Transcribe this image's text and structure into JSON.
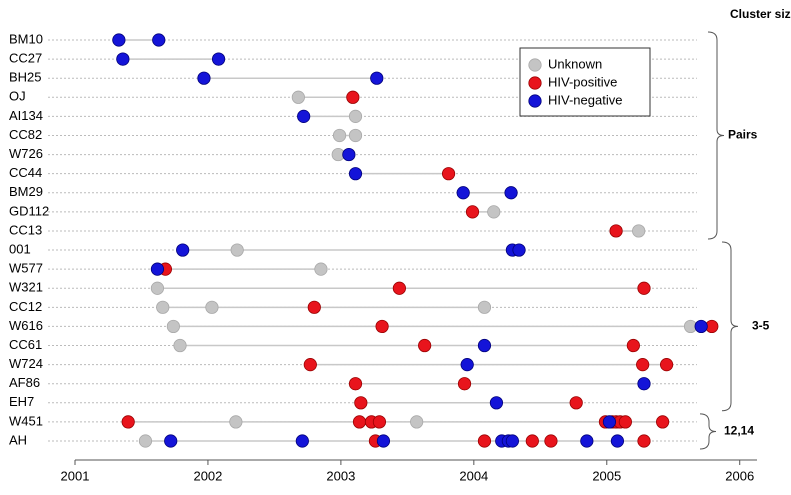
{
  "chart_data": {
    "type": "timeline-dots",
    "title": "Cluster sizes",
    "rows": [
      "BM10",
      "CC27",
      "BH25",
      "OJ",
      "AI134",
      "CC82",
      "W726",
      "CC44",
      "BM29",
      "GD112",
      "CC13",
      "001",
      "W577",
      "W321",
      "CC12",
      "W616",
      "CC61",
      "W724",
      "AF86",
      "EH7",
      "W451",
      "AH"
    ],
    "xlim": [
      2001,
      2006.13
    ],
    "xticks": [
      2001,
      2002,
      2003,
      2004,
      2005,
      2006
    ],
    "grid": true,
    "legend": "top-right",
    "groups": [
      {
        "label": "Pairs",
        "from": "BM10",
        "to": "CC13"
      },
      {
        "label": "3-5",
        "from": "001",
        "to": "EH7"
      },
      {
        "label": "12,14",
        "from": "W451",
        "to": "AH"
      }
    ],
    "series": [
      {
        "name": "Unknown",
        "color": "#c4c4c4",
        "rows": [
          "OJ",
          "AI134",
          "CC82",
          "CC82",
          "W726",
          "GD112",
          "CC13",
          "001",
          "W577",
          "W321",
          "CC12",
          "CC12",
          "CC12",
          "W616",
          "W616",
          "CC61",
          "W451",
          "W451",
          "AH"
        ],
        "values": [
          2002.68,
          2003.11,
          2002.99,
          2003.11,
          2002.98,
          2004.15,
          2005.24,
          2002.22,
          2002.85,
          2001.62,
          2001.66,
          2002.03,
          2004.08,
          2001.74,
          2005.63,
          2001.79,
          2002.21,
          2003.57,
          2001.53
        ]
      },
      {
        "name": "HIV-positive",
        "color": "#e8141c",
        "rows": [
          "OJ",
          "CC44",
          "GD112",
          "CC13",
          "W577",
          "W321",
          "W321",
          "CC12",
          "W616",
          "W616",
          "CC61",
          "CC61",
          "W724",
          "W724",
          "W724",
          "AF86",
          "AF86",
          "EH7",
          "EH7",
          "W451",
          "W451",
          "W451",
          "W451",
          "W451",
          "W451",
          "W451",
          "W451",
          "W451",
          "W451",
          "AH",
          "AH",
          "AH",
          "AH",
          "AH"
        ],
        "values": [
          2003.09,
          2003.81,
          2003.99,
          2005.07,
          2001.68,
          2003.44,
          2005.28,
          2002.8,
          2003.31,
          2005.79,
          2003.63,
          2005.2,
          2002.77,
          2005.27,
          2005.45,
          2003.11,
          2003.93,
          2003.15,
          2004.77,
          2001.4,
          2003.14,
          2003.23,
          2003.29,
          2004.99,
          2005.04,
          2005.07,
          2005.1,
          2005.14,
          2005.42,
          2003.26,
          2004.08,
          2004.44,
          2004.58,
          2005.28
        ]
      },
      {
        "name": "HIV-negative",
        "color": "#1414d8",
        "rows": [
          "BM10",
          "BM10",
          "CC27",
          "CC27",
          "BH25",
          "BH25",
          "AI134",
          "W726",
          "CC44",
          "BM29",
          "BM29",
          "001",
          "001",
          "001",
          "W577",
          "W616",
          "CC61",
          "W724",
          "AF86",
          "EH7",
          "W451",
          "AH",
          "AH",
          "AH",
          "AH",
          "AH",
          "AH",
          "AH",
          "AH"
        ],
        "values": [
          2001.33,
          2001.63,
          2001.36,
          2002.08,
          2001.97,
          2003.27,
          2002.72,
          2003.06,
          2003.11,
          2003.92,
          2004.28,
          2001.81,
          2004.29,
          2004.34,
          2001.62,
          2005.71,
          2004.08,
          2003.95,
          2005.28,
          2004.17,
          2005.02,
          2001.72,
          2002.71,
          2003.32,
          2004.21,
          2004.26,
          2004.29,
          2004.85,
          2005.08
        ]
      }
    ]
  }
}
